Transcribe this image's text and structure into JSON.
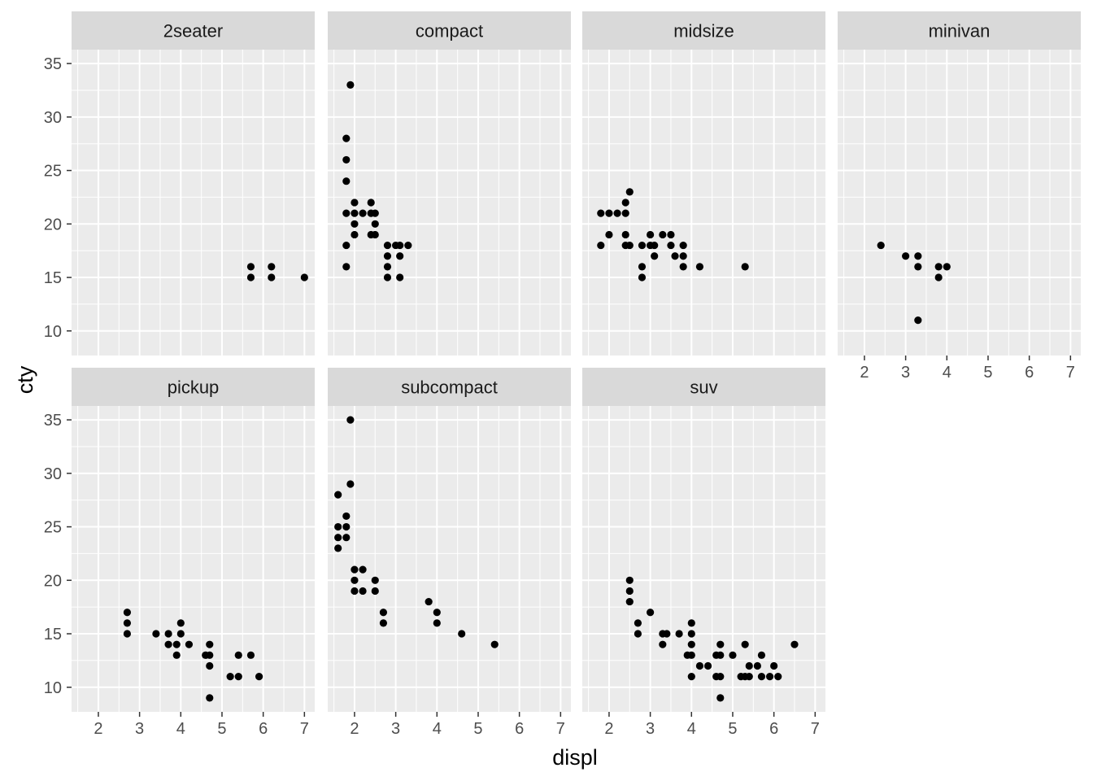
{
  "chart_data": {
    "type": "scatter",
    "facet_by": "class",
    "xlabel": "displ",
    "ylabel": "cty",
    "xlim": [
      1.35,
      7.25
    ],
    "ylim": [
      7.7,
      36.3
    ],
    "x_ticks": [
      2,
      3,
      4,
      5,
      6,
      7
    ],
    "y_ticks": [
      10,
      15,
      20,
      25,
      30,
      35
    ],
    "colors": {
      "panel_background": "#EBEBEB",
      "strip_background": "#D9D9D9",
      "grid": "#FFFFFF",
      "point": "#000000"
    },
    "panels": [
      {
        "label": "2seater",
        "points": [
          [
            5.7,
            16
          ],
          [
            5.7,
            15
          ],
          [
            6.2,
            16
          ],
          [
            6.2,
            15
          ],
          [
            7.0,
            15
          ]
        ]
      },
      {
        "label": "compact",
        "points": [
          [
            1.9,
            33
          ],
          [
            1.8,
            28
          ],
          [
            1.8,
            26
          ],
          [
            1.8,
            24
          ],
          [
            1.8,
            21
          ],
          [
            1.8,
            18
          ],
          [
            1.8,
            16
          ],
          [
            2.0,
            22
          ],
          [
            2.0,
            21
          ],
          [
            2.0,
            20
          ],
          [
            2.0,
            19
          ],
          [
            2.2,
            21
          ],
          [
            2.4,
            22
          ],
          [
            2.4,
            21
          ],
          [
            2.5,
            21
          ],
          [
            2.5,
            20
          ],
          [
            2.4,
            19
          ],
          [
            2.5,
            19
          ],
          [
            2.8,
            18
          ],
          [
            3.0,
            18
          ],
          [
            3.1,
            18
          ],
          [
            3.3,
            18
          ],
          [
            2.8,
            17
          ],
          [
            3.1,
            17
          ],
          [
            2.8,
            16
          ],
          [
            2.8,
            15
          ],
          [
            3.1,
            15
          ]
        ]
      },
      {
        "label": "midsize",
        "points": [
          [
            2.5,
            23
          ],
          [
            2.4,
            22
          ],
          [
            1.8,
            21
          ],
          [
            2.0,
            21
          ],
          [
            2.2,
            21
          ],
          [
            2.4,
            21
          ],
          [
            2.0,
            19
          ],
          [
            2.4,
            19
          ],
          [
            1.8,
            18
          ],
          [
            2.4,
            18
          ],
          [
            2.5,
            18
          ],
          [
            2.8,
            18
          ],
          [
            3.0,
            18
          ],
          [
            3.1,
            18
          ],
          [
            3.0,
            19
          ],
          [
            3.3,
            19
          ],
          [
            3.5,
            19
          ],
          [
            3.5,
            18
          ],
          [
            3.8,
            18
          ],
          [
            3.1,
            17
          ],
          [
            3.6,
            17
          ],
          [
            3.8,
            17
          ],
          [
            2.8,
            16
          ],
          [
            3.8,
            16
          ],
          [
            4.2,
            16
          ],
          [
            5.3,
            16
          ],
          [
            2.8,
            15
          ]
        ]
      },
      {
        "label": "minivan",
        "points": [
          [
            2.4,
            18
          ],
          [
            3.0,
            17
          ],
          [
            3.3,
            17
          ],
          [
            3.3,
            16
          ],
          [
            3.8,
            16
          ],
          [
            4.0,
            16
          ],
          [
            3.8,
            15
          ],
          [
            3.3,
            11
          ]
        ]
      },
      {
        "label": "pickup",
        "points": [
          [
            2.7,
            17
          ],
          [
            2.7,
            16
          ],
          [
            2.7,
            15
          ],
          [
            3.4,
            15
          ],
          [
            3.7,
            15
          ],
          [
            4.0,
            16
          ],
          [
            4.0,
            15
          ],
          [
            3.7,
            14
          ],
          [
            3.9,
            14
          ],
          [
            4.2,
            14
          ],
          [
            4.7,
            14
          ],
          [
            3.9,
            13
          ],
          [
            4.6,
            13
          ],
          [
            4.7,
            13
          ],
          [
            5.4,
            13
          ],
          [
            5.7,
            13
          ],
          [
            4.7,
            12
          ],
          [
            5.2,
            11
          ],
          [
            5.4,
            11
          ],
          [
            5.9,
            11
          ],
          [
            4.7,
            9
          ]
        ]
      },
      {
        "label": "subcompact",
        "points": [
          [
            1.9,
            35
          ],
          [
            1.9,
            29
          ],
          [
            1.6,
            28
          ],
          [
            1.8,
            26
          ],
          [
            1.6,
            25
          ],
          [
            1.8,
            25
          ],
          [
            1.6,
            24
          ],
          [
            1.8,
            24
          ],
          [
            1.6,
            23
          ],
          [
            2.0,
            21
          ],
          [
            2.2,
            21
          ],
          [
            2.0,
            20
          ],
          [
            2.5,
            20
          ],
          [
            2.0,
            19
          ],
          [
            2.2,
            19
          ],
          [
            2.5,
            19
          ],
          [
            3.8,
            18
          ],
          [
            2.7,
            17
          ],
          [
            4.0,
            17
          ],
          [
            2.7,
            16
          ],
          [
            4.0,
            16
          ],
          [
            4.6,
            15
          ],
          [
            5.4,
            14
          ]
        ]
      },
      {
        "label": "suv",
        "points": [
          [
            2.5,
            20
          ],
          [
            2.5,
            19
          ],
          [
            2.5,
            18
          ],
          [
            3.0,
            17
          ],
          [
            2.7,
            16
          ],
          [
            4.0,
            16
          ],
          [
            2.7,
            15
          ],
          [
            3.3,
            15
          ],
          [
            3.4,
            15
          ],
          [
            3.7,
            15
          ],
          [
            4.0,
            15
          ],
          [
            3.3,
            14
          ],
          [
            4.0,
            14
          ],
          [
            4.7,
            14
          ],
          [
            5.3,
            14
          ],
          [
            6.5,
            14
          ],
          [
            3.9,
            13
          ],
          [
            4.0,
            13
          ],
          [
            4.6,
            13
          ],
          [
            4.7,
            13
          ],
          [
            5.0,
            13
          ],
          [
            5.7,
            13
          ],
          [
            4.2,
            12
          ],
          [
            4.4,
            12
          ],
          [
            5.4,
            12
          ],
          [
            5.6,
            12
          ],
          [
            6.0,
            12
          ],
          [
            4.0,
            11
          ],
          [
            4.6,
            11
          ],
          [
            4.7,
            11
          ],
          [
            5.2,
            11
          ],
          [
            5.3,
            11
          ],
          [
            5.4,
            11
          ],
          [
            5.7,
            11
          ],
          [
            5.9,
            11
          ],
          [
            6.1,
            11
          ],
          [
            4.7,
            9
          ]
        ]
      }
    ]
  }
}
